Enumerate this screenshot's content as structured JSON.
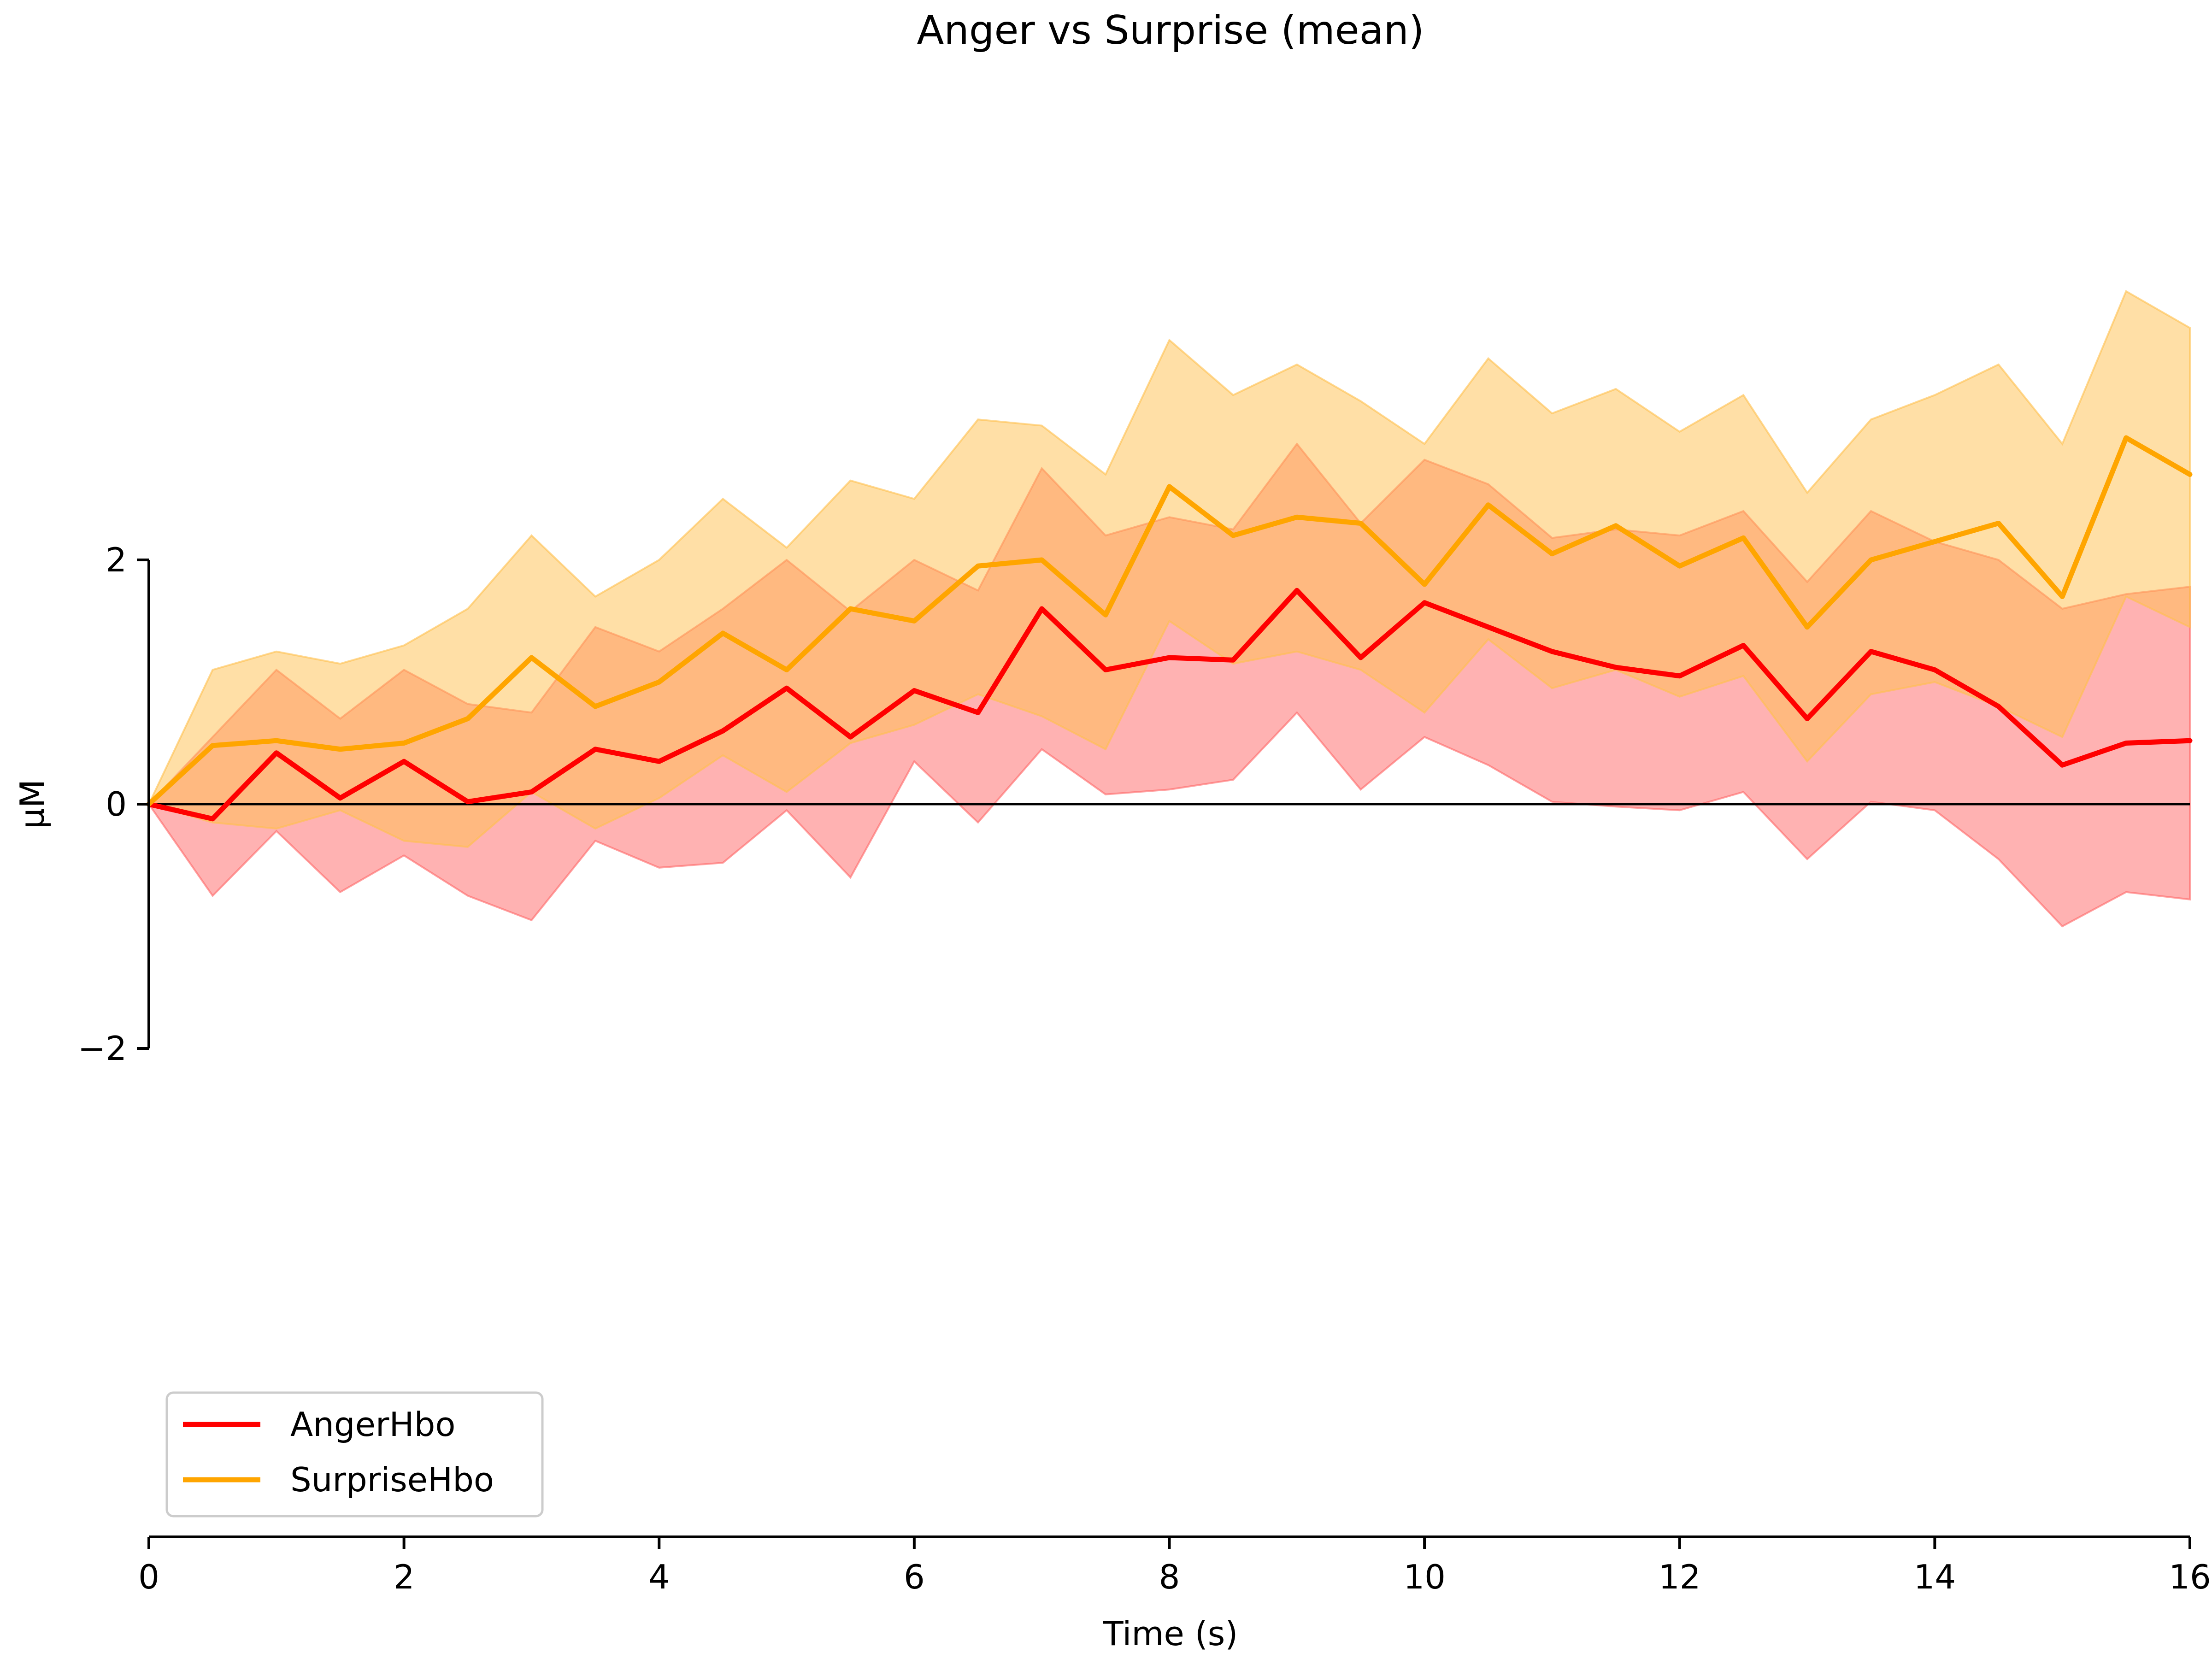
{
  "chart_data": {
    "type": "line",
    "title": "Anger vs Surprise (mean)",
    "xlabel": "Time (s)",
    "ylabel": "µM",
    "xlim": [
      0,
      16
    ],
    "ylim": [
      -2,
      2
    ],
    "xticks": [
      0,
      2,
      4,
      6,
      8,
      10,
      12,
      14,
      16
    ],
    "xtick_labels": [
      "0",
      "2",
      "4",
      "6",
      "8",
      "10",
      "12",
      "14",
      "16"
    ],
    "yticks": [
      -2,
      0,
      2
    ],
    "ytick_labels": [
      "−2",
      "0",
      "2"
    ],
    "zero_line": true,
    "grid": false,
    "legend_position": "lower-left",
    "x": [
      0,
      0.5,
      1,
      1.5,
      2,
      2.5,
      3,
      3.5,
      4,
      4.5,
      5,
      5.5,
      6,
      6.5,
      7,
      7.5,
      8,
      8.5,
      9,
      9.5,
      10,
      10.5,
      11,
      11.5,
      12,
      12.5,
      13,
      13.5,
      14,
      14.5,
      15,
      15.5,
      16
    ],
    "series": [
      {
        "name": "AngerHbo",
        "color": "#ff0000",
        "band_color": "#ff6666",
        "values": [
          0,
          -0.12,
          0.42,
          0.05,
          0.35,
          0.02,
          0.1,
          0.45,
          0.35,
          0.6,
          0.95,
          0.55,
          0.93,
          0.75,
          1.6,
          1.1,
          1.2,
          1.18,
          1.75,
          1.2,
          1.65,
          1.45,
          1.25,
          1.12,
          1.05,
          1.3,
          0.7,
          1.25,
          1.1,
          0.8,
          0.32,
          0.5,
          0.52
        ],
        "lower": [
          0,
          -0.75,
          -0.22,
          -0.72,
          -0.42,
          -0.75,
          -0.95,
          -0.3,
          -0.52,
          -0.48,
          -0.05,
          -0.6,
          0.35,
          -0.15,
          0.45,
          0.08,
          0.12,
          0.2,
          0.75,
          0.12,
          0.55,
          0.32,
          0.02,
          -0.02,
          -0.05,
          0.1,
          -0.45,
          0.02,
          -0.05,
          -0.45,
          -1.0,
          -0.72,
          -0.78
        ],
        "upper": [
          0,
          0.55,
          1.1,
          0.7,
          1.1,
          0.82,
          0.75,
          1.45,
          1.25,
          1.6,
          2.0,
          1.58,
          2.0,
          1.75,
          2.75,
          2.2,
          2.35,
          2.25,
          2.95,
          2.3,
          2.82,
          2.62,
          2.18,
          2.25,
          2.2,
          2.4,
          1.82,
          2.4,
          2.15,
          2.0,
          1.6,
          1.72,
          1.78
        ]
      },
      {
        "name": "SurpriseHbo",
        "color": "#ffa500",
        "band_color": "#ffc04d",
        "values": [
          0,
          0.48,
          0.52,
          0.45,
          0.5,
          0.7,
          1.2,
          0.8,
          1.0,
          1.4,
          1.1,
          1.6,
          1.5,
          1.95,
          2.0,
          1.55,
          2.6,
          2.2,
          2.35,
          2.3,
          1.8,
          2.45,
          2.05,
          2.28,
          1.95,
          2.18,
          1.45,
          2.0,
          2.15,
          2.3,
          1.7,
          3.0,
          2.7
        ],
        "lower": [
          0,
          -0.15,
          -0.2,
          -0.05,
          -0.3,
          -0.35,
          0.1,
          -0.2,
          0.05,
          0.4,
          0.1,
          0.5,
          0.65,
          0.9,
          0.72,
          0.45,
          1.5,
          1.15,
          1.25,
          1.1,
          0.75,
          1.35,
          0.95,
          1.1,
          0.88,
          1.05,
          0.35,
          0.9,
          1.0,
          0.8,
          0.55,
          1.7,
          1.45
        ],
        "upper": [
          0,
          1.1,
          1.25,
          1.15,
          1.3,
          1.6,
          2.2,
          1.7,
          2.0,
          2.5,
          2.1,
          2.65,
          2.5,
          3.15,
          3.1,
          2.7,
          3.8,
          3.35,
          3.6,
          3.3,
          2.95,
          3.65,
          3.2,
          3.4,
          3.05,
          3.35,
          2.55,
          3.15,
          3.35,
          3.6,
          2.95,
          4.2,
          3.9
        ]
      }
    ]
  }
}
